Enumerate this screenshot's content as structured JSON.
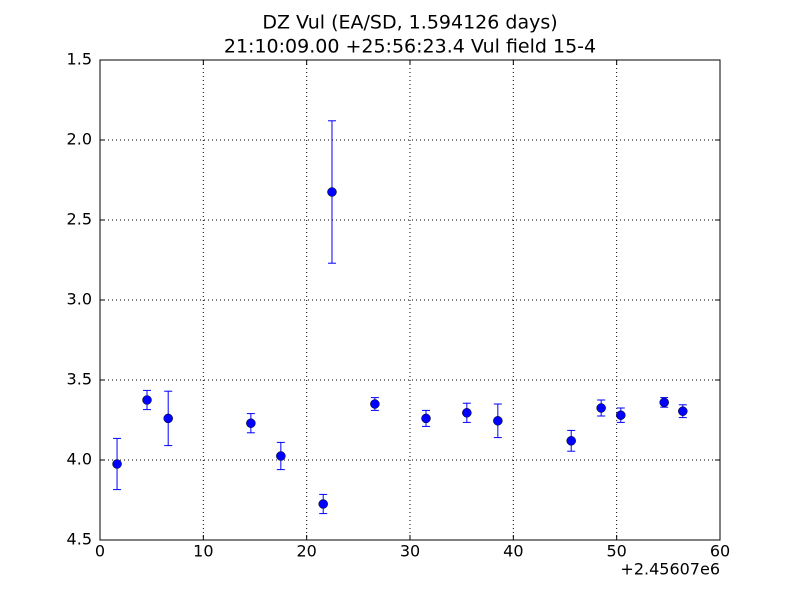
{
  "chart_data": {
    "type": "errorbar",
    "title": "DZ Vul (EA/SD, 1.594126 days)",
    "subtitle": "21:10:09.00 +25:56:23.4 Vul field 15-4",
    "x_offset_label": "+2.45607e6",
    "x": [
      1.65,
      4.55,
      6.6,
      14.6,
      17.5,
      21.6,
      22.45,
      26.6,
      31.55,
      35.5,
      38.5,
      45.6,
      48.5,
      50.4,
      54.6,
      56.4
    ],
    "values": [
      4.025,
      3.625,
      3.74,
      3.77,
      3.975,
      4.275,
      2.325,
      3.65,
      3.74,
      3.705,
      3.755,
      3.88,
      3.675,
      3.72,
      3.64,
      3.695
    ],
    "errors": [
      0.16,
      0.06,
      0.17,
      0.06,
      0.085,
      0.06,
      0.445,
      0.04,
      0.05,
      0.06,
      0.105,
      0.065,
      0.05,
      0.045,
      0.03,
      0.04
    ],
    "color": "#0000ff",
    "xlim": [
      0,
      60
    ],
    "xticks": [
      0,
      10,
      20,
      30,
      40,
      50,
      60
    ],
    "ylim": [
      4.5,
      1.5
    ],
    "yticks": [
      {
        "value": 1.5,
        "label": "1.5"
      },
      {
        "value": 2,
        "label": "2.0"
      },
      {
        "value": 2.5,
        "label": "2.5"
      },
      {
        "value": 3,
        "label": "3.0"
      },
      {
        "value": 3.5,
        "label": "3.5"
      },
      {
        "value": 4,
        "label": "4.0"
      },
      {
        "value": 4.5,
        "label": "4.5"
      }
    ],
    "grid": true
  }
}
